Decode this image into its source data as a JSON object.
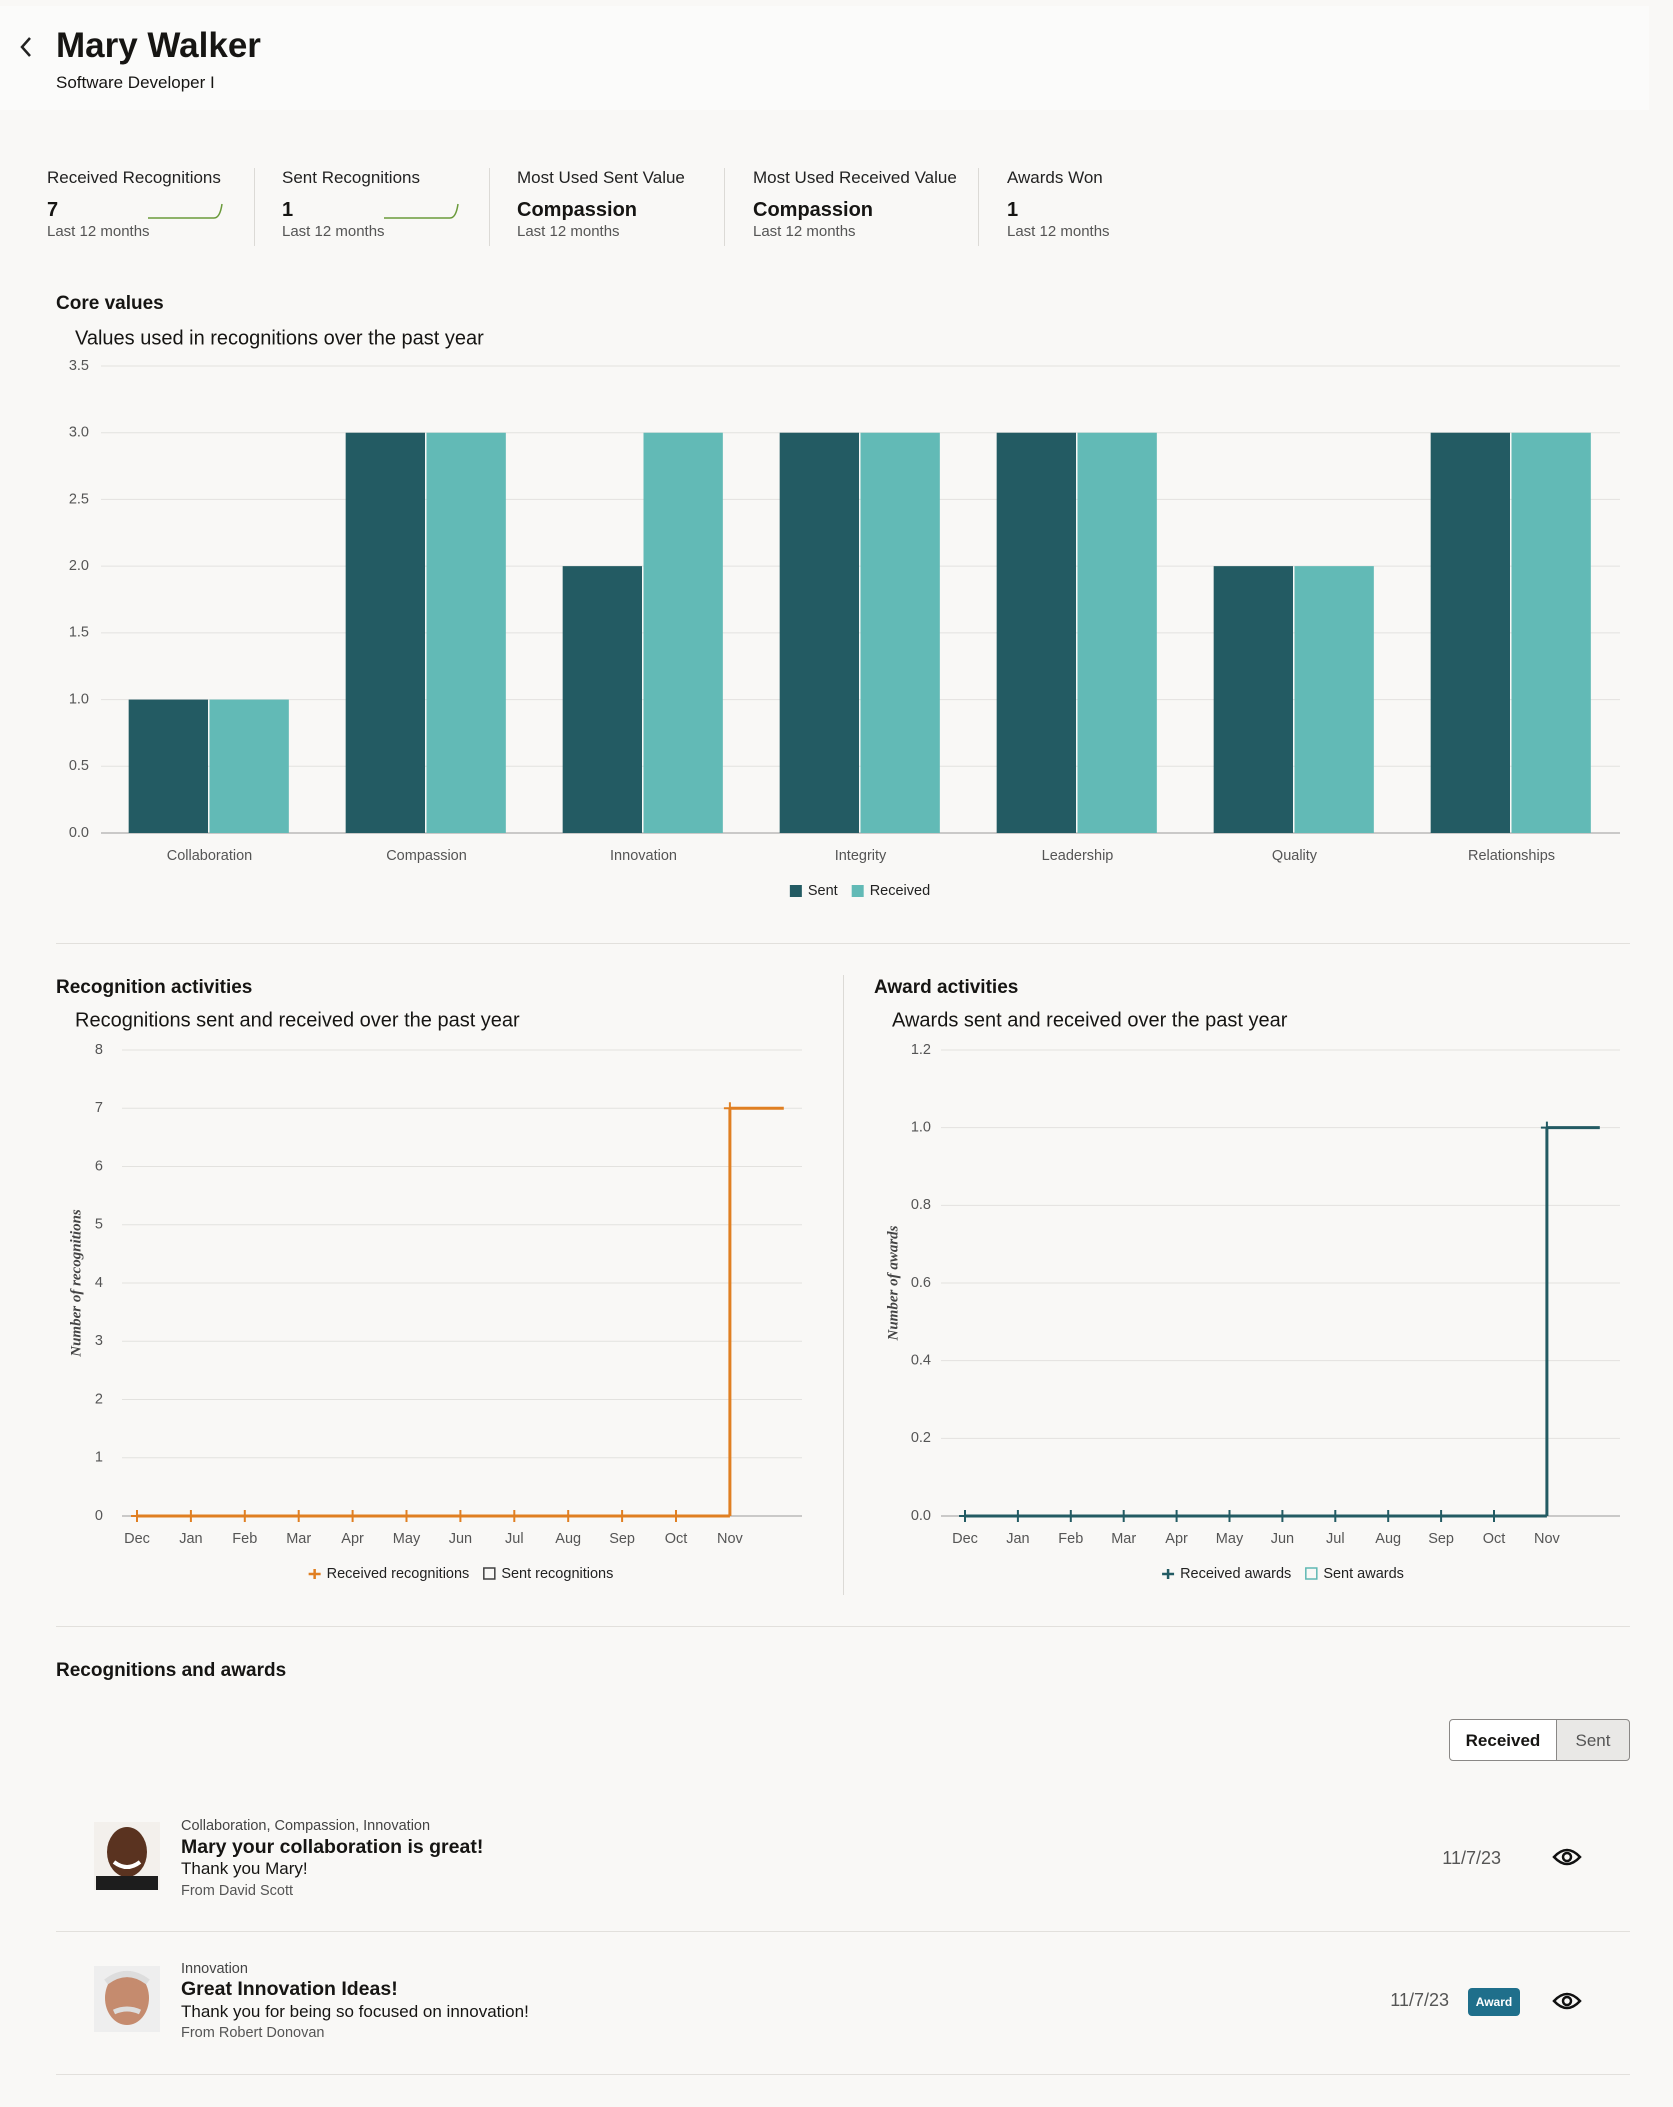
{
  "header": {
    "name": "Mary Walker",
    "subtitle": "Software Developer I"
  },
  "kpis": [
    {
      "label": "Received Recognitions",
      "value": "7",
      "period": "Last 12 months"
    },
    {
      "label": "Sent Recognitions",
      "value": "1",
      "period": "Last 12 months"
    },
    {
      "label": "Most Used Sent Value",
      "value": "Compassion",
      "period": "Last 12 months"
    },
    {
      "label": "Most Used Received Value",
      "value": "Compassion",
      "period": "Last 12 months"
    },
    {
      "label": "Awards Won",
      "value": "1",
      "period": "Last 12 months"
    }
  ],
  "chart_data": [
    {
      "type": "bar",
      "title": "Core values",
      "subtitle": "Values used in recognitions over the past year",
      "categories": [
        "Collaboration",
        "Compassion",
        "Innovation",
        "Integrity",
        "Leadership",
        "Quality",
        "Relationships"
      ],
      "series": [
        {
          "name": "Sent",
          "color": "#235b63",
          "values": [
            1,
            3,
            2,
            3,
            3,
            2,
            3
          ]
        },
        {
          "name": "Received",
          "color": "#62bab6",
          "values": [
            1,
            3,
            3,
            3,
            3,
            2,
            3
          ]
        }
      ],
      "ylim": [
        0,
        3.5
      ],
      "yticks": [
        {
          "value": 0,
          "label": "0.0"
        },
        0.5,
        {
          "value": 1,
          "label": "1.0"
        },
        1.5,
        {
          "value": 2,
          "label": "2.0"
        },
        2.5,
        {
          "value": 3,
          "label": "3.0"
        },
        3.5
      ],
      "grid": true,
      "legend": "bottom"
    },
    {
      "type": "line",
      "title": "Recognition activities",
      "subtitle": "Recognitions sent and received over the past year",
      "y_label": "Number of recognitions",
      "categories": [
        "Dec",
        "Jan",
        "Feb",
        "Mar",
        "Apr",
        "May",
        "Jun",
        "Jul",
        "Aug",
        "Sep",
        "Oct",
        "Nov"
      ],
      "series": [
        {
          "name": "Received recognitions",
          "color": "#e07f22",
          "values": [
            0,
            0,
            0,
            0,
            0,
            0,
            0,
            0,
            0,
            0,
            0,
            7
          ]
        },
        {
          "name": "Sent recognitions",
          "color": "#404040",
          "values": [
            null,
            null,
            null,
            null,
            null,
            null,
            null,
            null,
            null,
            null,
            null,
            null
          ]
        }
      ],
      "ylim": [
        0,
        8
      ],
      "yticks": [
        0,
        1,
        2,
        3,
        4,
        5,
        6,
        7,
        8
      ],
      "grid": true,
      "legend": "bottom",
      "step": true
    },
    {
      "type": "line",
      "title": "Award activities",
      "subtitle": "Awards sent and received over the past year",
      "y_label": "Number of awards",
      "categories": [
        "Dec",
        "Jan",
        "Feb",
        "Mar",
        "Apr",
        "May",
        "Jun",
        "Jul",
        "Aug",
        "Sep",
        "Oct",
        "Nov"
      ],
      "series": [
        {
          "name": "Received awards",
          "color": "#235b63",
          "values": [
            0,
            0,
            0,
            0,
            0,
            0,
            0,
            0,
            0,
            0,
            0,
            1
          ]
        },
        {
          "name": "Sent awards",
          "color": "#5fb8b3",
          "values": [
            null,
            null,
            null,
            null,
            null,
            null,
            null,
            null,
            null,
            null,
            null,
            null
          ]
        }
      ],
      "ylim": [
        0,
        1.2
      ],
      "yticks": [
        {
          "value": 0,
          "label": "0.0"
        },
        0.2,
        0.4,
        0.6,
        0.8,
        {
          "value": 1,
          "label": "1.0"
        },
        1.2
      ],
      "grid": true,
      "legend": "bottom",
      "step": true
    }
  ],
  "recognitions": {
    "title": "Recognitions and awards",
    "tabs": [
      "Received",
      "Sent"
    ],
    "items": [
      {
        "values": "Collaboration, Compassion, Innovation",
        "title": "Mary your collaboration is great!",
        "message": "Thank you Mary!",
        "from": "From David Scott",
        "date": "11/7/23"
      },
      {
        "values": "Innovation",
        "title": "Great Innovation Ideas!",
        "message": "Thank you for being so focused on innovation!",
        "from": "From Robert Donovan",
        "date": "11/7/23",
        "badge": "Award"
      }
    ]
  }
}
